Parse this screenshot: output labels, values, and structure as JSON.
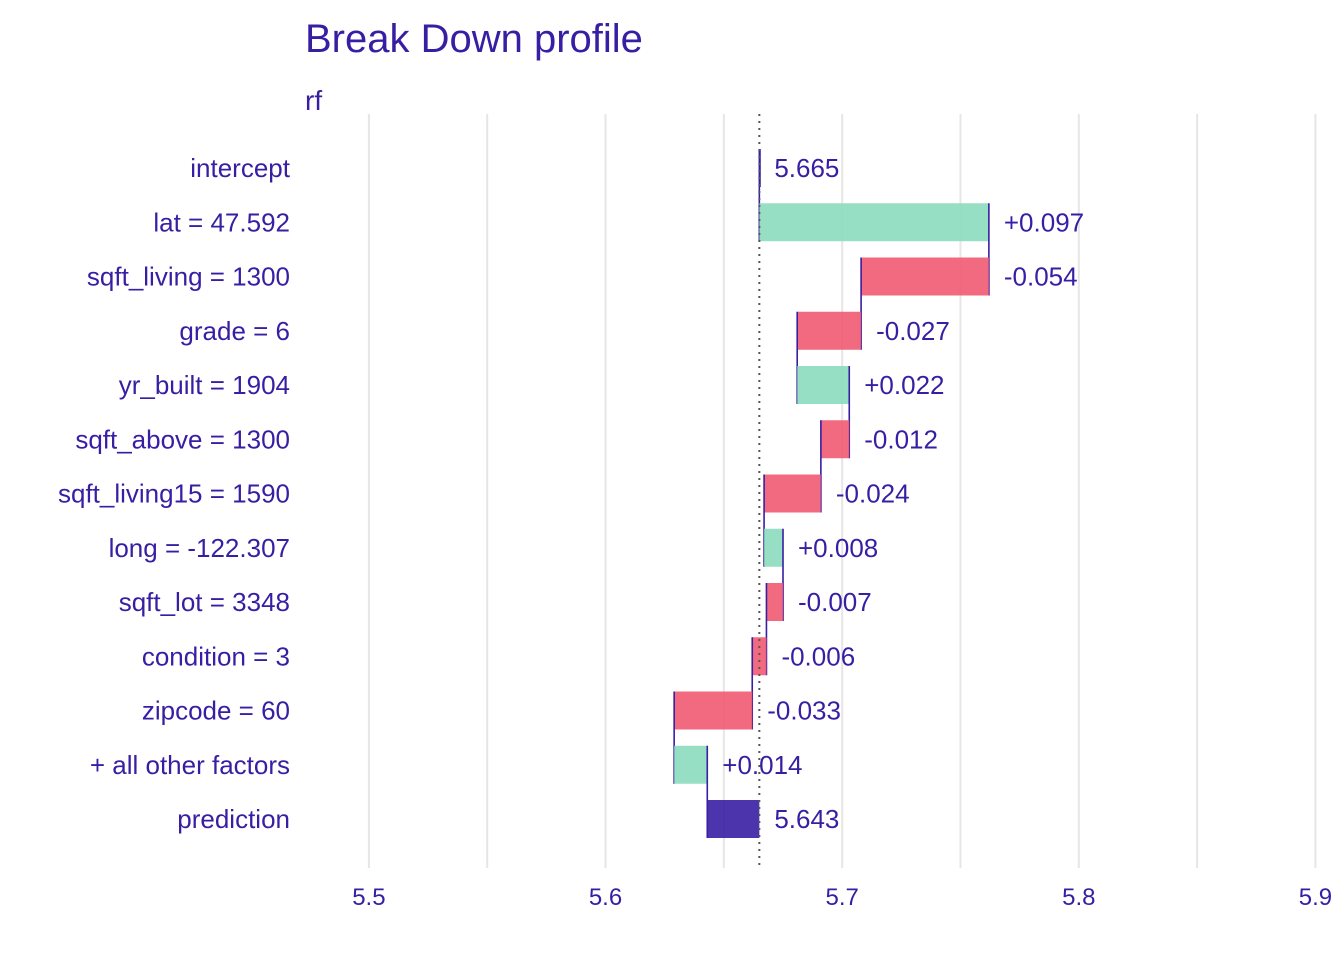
{
  "chart_data": {
    "type": "bar",
    "subtype": "waterfall",
    "title": "Break Down profile",
    "subtitle": "rf",
    "xlim": [
      5.473,
      5.907
    ],
    "x_ticks": [
      5.5,
      5.6,
      5.7,
      5.8,
      5.9
    ],
    "x_tick_labels": [
      "5.5",
      "5.6",
      "5.7",
      "5.8",
      "5.9"
    ],
    "baseline": 5.665,
    "grid": true,
    "colors": {
      "positive": "#8bdcbe",
      "negative": "#f05a71",
      "prediction": "#371ea3",
      "text": "#371ea3"
    },
    "rows": [
      {
        "label": "intercept",
        "start": 5.665,
        "end": 5.665,
        "value_label": "5.665",
        "kind": "intercept"
      },
      {
        "label": "lat = 47.592",
        "start": 5.665,
        "end": 5.762,
        "value_label": "+0.097",
        "kind": "positive"
      },
      {
        "label": "sqft_living = 1300",
        "start": 5.762,
        "end": 5.708,
        "value_label": "-0.054",
        "kind": "negative"
      },
      {
        "label": "grade = 6",
        "start": 5.708,
        "end": 5.681,
        "value_label": "-0.027",
        "kind": "negative"
      },
      {
        "label": "yr_built = 1904",
        "start": 5.681,
        "end": 5.703,
        "value_label": "+0.022",
        "kind": "positive"
      },
      {
        "label": "sqft_above = 1300",
        "start": 5.703,
        "end": 5.691,
        "value_label": "-0.012",
        "kind": "negative"
      },
      {
        "label": "sqft_living15 = 1590",
        "start": 5.691,
        "end": 5.667,
        "value_label": "-0.024",
        "kind": "negative"
      },
      {
        "label": "long = -122.307",
        "start": 5.667,
        "end": 5.675,
        "value_label": "+0.008",
        "kind": "positive"
      },
      {
        "label": "sqft_lot = 3348",
        "start": 5.675,
        "end": 5.668,
        "value_label": "-0.007",
        "kind": "negative"
      },
      {
        "label": "condition = 3",
        "start": 5.668,
        "end": 5.662,
        "value_label": "-0.006",
        "kind": "negative"
      },
      {
        "label": "zipcode = 60",
        "start": 5.662,
        "end": 5.629,
        "value_label": "-0.033",
        "kind": "negative"
      },
      {
        "label": "+ all other factors",
        "start": 5.629,
        "end": 5.643,
        "value_label": "+0.014",
        "kind": "positive"
      },
      {
        "label": "prediction",
        "start": 5.643,
        "end": 5.665,
        "value_label": "5.643",
        "kind": "prediction"
      }
    ]
  }
}
